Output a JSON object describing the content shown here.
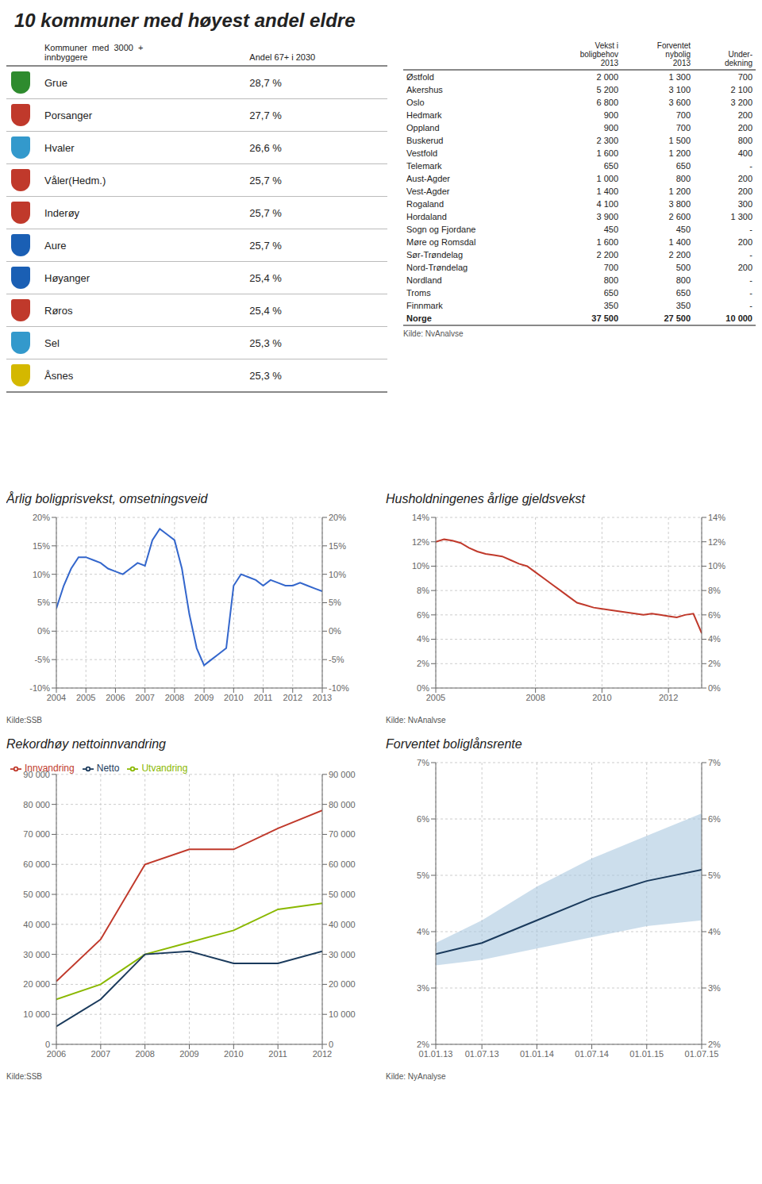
{
  "chart_data": [
    {
      "type": "table",
      "title": "10 kommuner med høyest andel eldre",
      "columns": [
        "Kommuner  med  3000  +\ninnbyggere",
        "Andel 67+ i 2030"
      ],
      "rows": [
        [
          "Grue",
          "28,7 %"
        ],
        [
          "Porsanger",
          "27,7 %"
        ],
        [
          "Hvaler",
          "26,6 %"
        ],
        [
          "Våler(Hedm.)",
          "25,7 %"
        ],
        [
          "Inderøy",
          "25,7 %"
        ],
        [
          "Aure",
          "25,7 %"
        ],
        [
          "Høyanger",
          "25,4 %"
        ],
        [
          "Røros",
          "25,4 %"
        ],
        [
          "Sel",
          "25,3 %"
        ],
        [
          "Åsnes",
          "25,3 %"
        ]
      ],
      "colors": [
        "#2e8b2e",
        "#c0392b",
        "#3399cc",
        "#c0392b",
        "#c0392b",
        "#1a5fb4",
        "#1a5fb4",
        "#c0392b",
        "#3399cc",
        "#d4b800"
      ]
    },
    {
      "type": "table",
      "columns": [
        "Vekst i\nboligbehov\n2013",
        "Forventet\nnybolig\n2013",
        "Under-\ndekning"
      ],
      "rows": [
        [
          "Østfold",
          "2 000",
          "1 300",
          "700"
        ],
        [
          "Akershus",
          "5 200",
          "3 100",
          "2 100"
        ],
        [
          "Oslo",
          "6 800",
          "3 600",
          "3 200"
        ],
        [
          "Hedmark",
          "900",
          "700",
          "200"
        ],
        [
          "Oppland",
          "900",
          "700",
          "200"
        ],
        [
          "Buskerud",
          "2 300",
          "1 500",
          "800"
        ],
        [
          "Vestfold",
          "1 600",
          "1 200",
          "400"
        ],
        [
          "Telemark",
          "650",
          "650",
          "-"
        ],
        [
          "Aust-Agder",
          "1 000",
          "800",
          "200"
        ],
        [
          "Vest-Agder",
          "1 400",
          "1 200",
          "200"
        ],
        [
          "Rogaland",
          "4 100",
          "3 800",
          "300"
        ],
        [
          "Hordaland",
          "3 900",
          "2 600",
          "1 300"
        ],
        [
          "Sogn og Fjordane",
          "450",
          "450",
          "-"
        ],
        [
          "Møre og Romsdal",
          "1 600",
          "1 400",
          "200"
        ],
        [
          "Sør-Trøndelag",
          "2 200",
          "2 200",
          "-"
        ],
        [
          "Nord-Trøndelag",
          "700",
          "500",
          "200"
        ],
        [
          "Nordland",
          "800",
          "800",
          "-"
        ],
        [
          "Troms",
          "650",
          "650",
          "-"
        ],
        [
          "Finnmark",
          "350",
          "350",
          "-"
        ],
        [
          "Norge",
          "37 500",
          "27 500",
          "10 000"
        ]
      ],
      "annotations": [
        "Kilde: NvAnalvse"
      ]
    },
    {
      "type": "line",
      "title": "Årlig boligprisvekst, omsetningsveid",
      "color": "#3366cc",
      "x": [
        2004,
        2004.25,
        2004.5,
        2004.75,
        2005,
        2005.25,
        2005.5,
        2005.75,
        2006,
        2006.25,
        2006.5,
        2006.75,
        2007,
        2007.25,
        2007.5,
        2007.75,
        2008,
        2008.25,
        2008.5,
        2008.75,
        2009,
        2009.25,
        2009.5,
        2009.75,
        2010,
        2010.25,
        2010.5,
        2010.75,
        2011,
        2011.25,
        2011.5,
        2011.75,
        2012,
        2012.25,
        2012.5,
        2012.75,
        2013
      ],
      "values": [
        4,
        8,
        11,
        13,
        13,
        12.5,
        12,
        11,
        10.5,
        10,
        11,
        12,
        11.5,
        16,
        18,
        17,
        16,
        11,
        3,
        -3,
        -6,
        -5,
        -4,
        -3,
        8,
        10,
        9.5,
        9,
        8,
        9,
        8.5,
        8,
        8,
        8.5,
        8,
        7.5,
        7
      ],
      "xlim": [
        2004,
        2013
      ],
      "xticks": [
        2004,
        2005,
        2006,
        2007,
        2008,
        2009,
        2010,
        2011,
        2012,
        2013
      ],
      "ylim": [
        -10,
        20
      ],
      "yticks": [
        {
          "value": -10,
          "label": "-10%"
        },
        {
          "value": -5,
          "label": "-5%"
        },
        {
          "value": 0,
          "label": "0%"
        },
        {
          "value": 5,
          "label": "5%"
        },
        {
          "value": 10,
          "label": "10%"
        },
        {
          "value": 15,
          "label": "15%"
        },
        {
          "value": 20,
          "label": "20%"
        }
      ],
      "y2lim": [
        -10,
        20
      ],
      "y2ticks": [
        {
          "value": -10,
          "label": "-10%"
        },
        {
          "value": -5,
          "label": "-5%"
        },
        {
          "value": 0,
          "label": "0%"
        },
        {
          "value": 5,
          "label": "5%"
        },
        {
          "value": 10,
          "label": "10%"
        },
        {
          "value": 15,
          "label": "15%"
        },
        {
          "value": 20,
          "label": "20%"
        }
      ],
      "grid": true,
      "annotations": [
        "Kilde:SSB"
      ]
    },
    {
      "type": "line",
      "title": "Husholdningenes årlige gjeldsvekst",
      "color": "#c0392b",
      "x": [
        2005,
        2005.25,
        2005.5,
        2005.75,
        2006,
        2006.25,
        2006.5,
        2006.75,
        2007,
        2007.25,
        2007.5,
        2007.75,
        2008,
        2008.25,
        2008.5,
        2008.75,
        2009,
        2009.25,
        2009.5,
        2009.75,
        2010,
        2010.25,
        2010.5,
        2010.75,
        2011,
        2011.25,
        2011.5,
        2011.75,
        2012,
        2012.25,
        2012.5,
        2012.75,
        2013
      ],
      "values": [
        12,
        12.2,
        12.1,
        11.9,
        11.5,
        11.2,
        11,
        10.9,
        10.8,
        10.5,
        10.2,
        10,
        9.5,
        9,
        8.5,
        8,
        7.5,
        7,
        6.8,
        6.6,
        6.5,
        6.4,
        6.3,
        6.2,
        6.1,
        6,
        6.1,
        6.0,
        5.9,
        5.8,
        6.0,
        6.1,
        4.5
      ],
      "xlim": [
        2005,
        2013
      ],
      "xticks": [
        2005,
        2008,
        2010,
        2012
      ],
      "ylim": [
        0,
        14
      ],
      "yticks": [
        {
          "value": 0,
          "label": "0%"
        },
        {
          "value": 2,
          "label": "2%"
        },
        {
          "value": 4,
          "label": "4%"
        },
        {
          "value": 6,
          "label": "6%"
        },
        {
          "value": 8,
          "label": "8%"
        },
        {
          "value": 10,
          "label": "10%"
        },
        {
          "value": 12,
          "label": "12%"
        },
        {
          "value": 14,
          "label": "14%"
        }
      ],
      "y2lim": [
        0,
        14
      ],
      "y2ticks": [
        {
          "value": 0,
          "label": "0%"
        },
        {
          "value": 2,
          "label": "2%"
        },
        {
          "value": 4,
          "label": "4%"
        },
        {
          "value": 6,
          "label": "6%"
        },
        {
          "value": 8,
          "label": "8%"
        },
        {
          "value": 10,
          "label": "10%"
        },
        {
          "value": 12,
          "label": "12%"
        },
        {
          "value": 14,
          "label": "14%"
        }
      ],
      "grid": true,
      "annotations": [
        "Kilde: NvAnalvse"
      ]
    },
    {
      "type": "line",
      "title": "Rekordhøy nettoinnvandring",
      "x": [
        2006,
        2007,
        2008,
        2009,
        2010,
        2011,
        2012
      ],
      "series": [
        {
          "name": "Innvandring",
          "color": "#c0392b",
          "values": [
            21000,
            35000,
            60000,
            65000,
            65000,
            72000,
            78000
          ]
        },
        {
          "name": "Utvandring",
          "color": "#8ab800",
          "values": [
            15000,
            20000,
            30000,
            34000,
            38000,
            45000,
            47000
          ]
        },
        {
          "name": "Netto",
          "color": "#1a3a5c",
          "values": [
            6000,
            15000,
            30000,
            31000,
            27000,
            27000,
            31000
          ]
        }
      ],
      "xlim": [
        2006,
        2012
      ],
      "xticks": [
        2006,
        2007,
        2008,
        2009,
        2010,
        2011,
        2012
      ],
      "ylim": [
        0,
        90000
      ],
      "yticks": [
        0,
        {
          "value": 10000,
          "label": "10 000"
        },
        {
          "value": 20000,
          "label": "20 000"
        },
        {
          "value": 30000,
          "label": "30 000"
        },
        {
          "value": 40000,
          "label": "40 000"
        },
        {
          "value": 50000,
          "label": "50 000"
        },
        {
          "value": 60000,
          "label": "60 000"
        },
        {
          "value": 70000,
          "label": "70 000"
        },
        {
          "value": 80000,
          "label": "80 000"
        },
        {
          "value": 90000,
          "label": "90 000"
        }
      ],
      "y2lim": [
        0,
        90000
      ],
      "y2ticks": [
        0,
        {
          "value": 10000,
          "label": "10 000"
        },
        {
          "value": 20000,
          "label": "20 000"
        },
        {
          "value": 30000,
          "label": "30 000"
        },
        {
          "value": 40000,
          "label": "40 000"
        },
        {
          "value": 50000,
          "label": "50 000"
        },
        {
          "value": 60000,
          "label": "60 000"
        },
        {
          "value": 70000,
          "label": "70 000"
        },
        {
          "value": 80000,
          "label": "80 000"
        },
        {
          "value": 90000,
          "label": "90 000"
        }
      ],
      "grid": true,
      "legend": "upper left",
      "annotations": [
        "Kilde:SSB"
      ]
    },
    {
      "type": "line",
      "title": "Forventet boliglånsrente",
      "x": [
        2013.08,
        2013.5,
        2014.0,
        2014.5,
        2015.0,
        2015.5
      ],
      "series": [
        {
          "type": "band",
          "color": "#aac8e0",
          "low": [
            3.4,
            3.5,
            3.7,
            3.9,
            4.1,
            4.2
          ],
          "high": [
            3.8,
            4.2,
            4.8,
            5.3,
            5.7,
            6.1
          ]
        },
        {
          "type": "line",
          "color": "#1a3a5c",
          "values": [
            3.6,
            3.8,
            4.2,
            4.6,
            4.9,
            5.1
          ]
        }
      ],
      "xlim": [
        2013.08,
        2015.5
      ],
      "xticks": [
        {
          "value": 2013.08,
          "label": "01.01.13"
        },
        {
          "value": 2013.5,
          "label": "01.07.13"
        },
        {
          "value": 2014.0,
          "label": "01.01.14"
        },
        {
          "value": 2014.5,
          "label": "01.07.14"
        },
        {
          "value": 2015.0,
          "label": "01.01.15"
        },
        {
          "value": 2015.5,
          "label": "01.07.15"
        }
      ],
      "ylim": [
        2,
        7
      ],
      "yticks": [
        {
          "value": 2,
          "label": "2%"
        },
        {
          "value": 3,
          "label": "3%"
        },
        {
          "value": 4,
          "label": "4%"
        },
        {
          "value": 5,
          "label": "5%"
        },
        {
          "value": 6,
          "label": "6%"
        },
        {
          "value": 7,
          "label": "7%"
        }
      ],
      "y2lim": [
        2,
        7
      ],
      "y2ticks": [
        {
          "value": 2,
          "label": "2%"
        },
        {
          "value": 3,
          "label": "3%"
        },
        {
          "value": 4,
          "label": "4%"
        },
        {
          "value": 5,
          "label": "5%"
        },
        {
          "value": 6,
          "label": "6%"
        },
        {
          "value": 7,
          "label": "7%"
        }
      ],
      "grid": true,
      "annotations": [
        "Kilde: NyAnalyse"
      ]
    }
  ]
}
